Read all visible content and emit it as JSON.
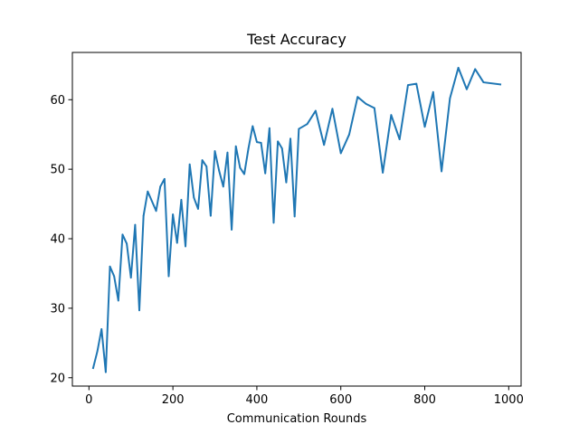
{
  "chart_data": {
    "type": "line",
    "title": "Test Accuracy",
    "xlabel": "Communication Rounds",
    "ylabel": "",
    "xlim": [
      -39.5,
      1029.5
    ],
    "ylim": [
      18.8,
      66.8
    ],
    "xticks": [
      0,
      200,
      400,
      600,
      800,
      1000
    ],
    "yticks": [
      20,
      30,
      40,
      50,
      60
    ],
    "grid": false,
    "legend": "none",
    "series": [
      {
        "color": "#1f77b4",
        "x": [
          10,
          20,
          30,
          40,
          50,
          60,
          70,
          80,
          90,
          100,
          110,
          120,
          130,
          140,
          150,
          160,
          170,
          180,
          190,
          200,
          210,
          220,
          230,
          240,
          250,
          260,
          270,
          280,
          290,
          300,
          310,
          320,
          330,
          340,
          350,
          360,
          370,
          380,
          390,
          400,
          410,
          420,
          430,
          440,
          450,
          460,
          470,
          480,
          490,
          500,
          520,
          540,
          560,
          580,
          600,
          620,
          640,
          660,
          680,
          700,
          720,
          740,
          760,
          780,
          800,
          820,
          840,
          860,
          880,
          900,
          920,
          940,
          980
        ],
        "y": [
          21.4,
          23.8,
          27.0,
          20.8,
          36.0,
          34.6,
          31.1,
          40.6,
          39.3,
          34.4,
          42.0,
          29.7,
          43.3,
          46.8,
          45.4,
          44.0,
          47.5,
          48.6,
          34.6,
          43.5,
          39.4,
          45.6,
          38.9,
          50.7,
          45.9,
          44.3,
          51.3,
          50.4,
          43.3,
          52.6,
          49.8,
          47.5,
          52.4,
          41.3,
          53.3,
          50.2,
          49.3,
          53.0,
          56.2,
          53.9,
          53.8,
          49.4,
          55.9,
          42.3,
          54.0,
          53.0,
          48.1,
          54.4,
          43.2,
          55.8,
          56.5,
          58.4,
          53.5,
          58.7,
          52.3,
          55.0,
          60.4,
          59.4,
          58.8,
          49.5,
          57.8,
          54.3,
          62.1,
          62.3,
          56.1,
          61.1,
          49.7,
          60.2,
          64.6,
          61.5,
          64.4,
          62.5,
          62.2
        ]
      }
    ]
  }
}
